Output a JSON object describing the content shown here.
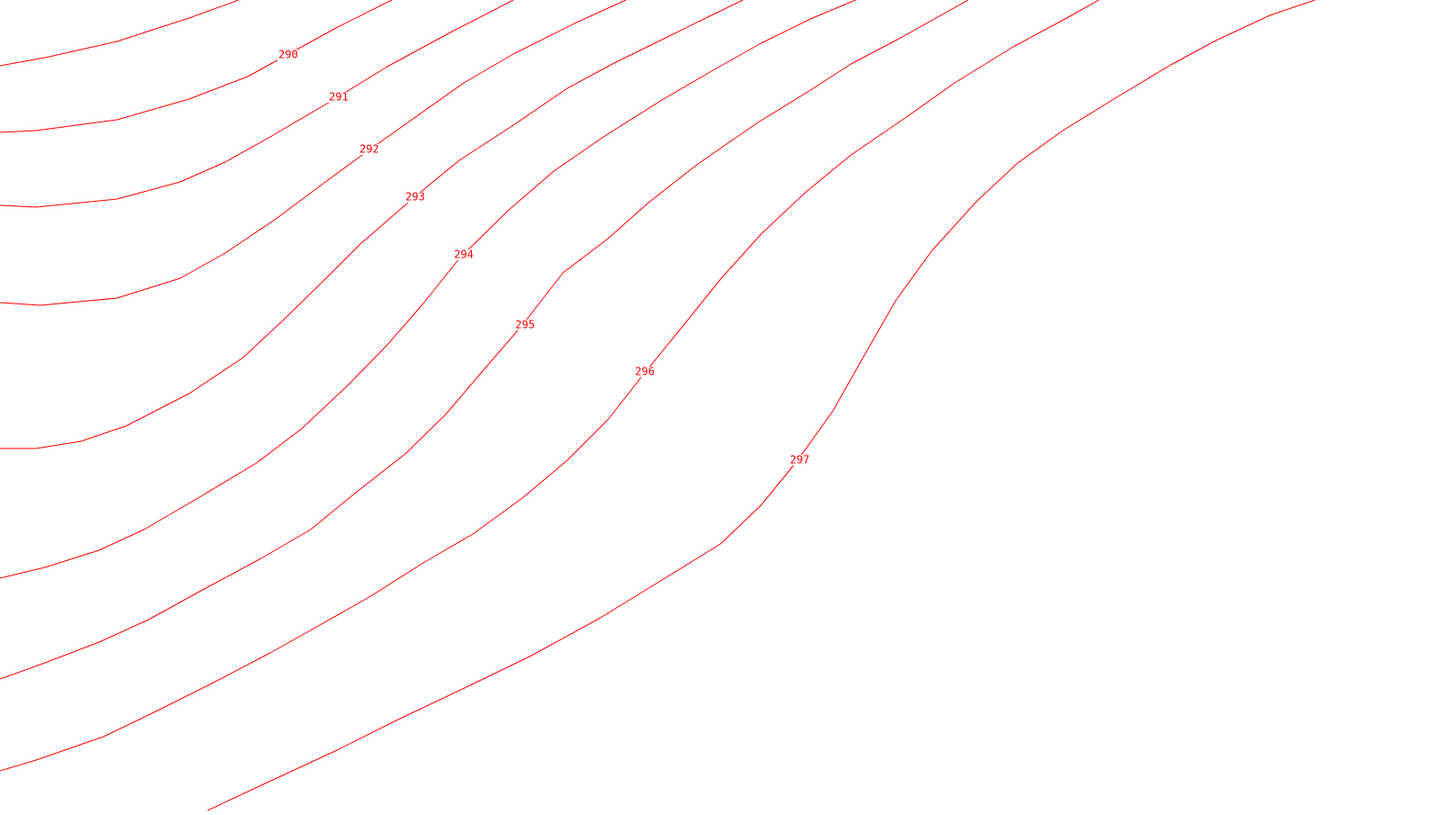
{
  "map": {
    "line_color": "#ff0000",
    "background_color": "#ffffff",
    "contours": [
      {
        "id": "c290",
        "label": "290"
      },
      {
        "id": "c291",
        "label": "291"
      },
      {
        "id": "c292",
        "label": "292"
      },
      {
        "id": "c293",
        "label": "293"
      },
      {
        "id": "c294",
        "label": "294"
      },
      {
        "id": "c295",
        "label": "295"
      },
      {
        "id": "c296",
        "label": "296"
      },
      {
        "id": "c297",
        "label": "297"
      }
    ]
  }
}
